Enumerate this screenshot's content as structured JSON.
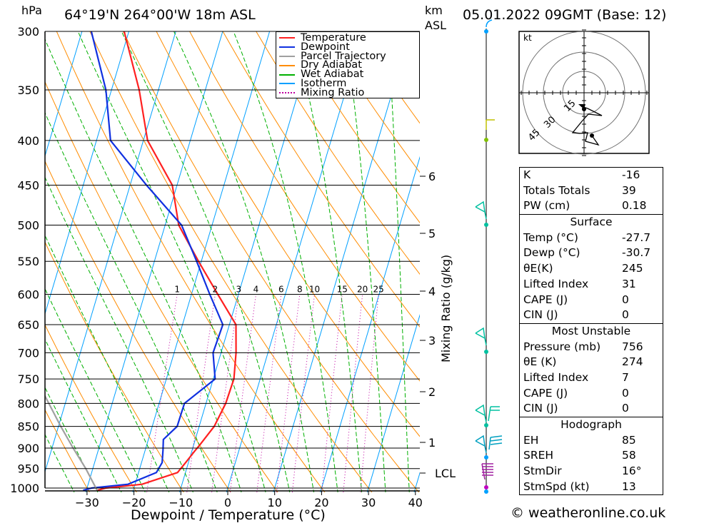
{
  "header": {
    "location": "64°19'N  264°00'W  18m  ASL",
    "datetime": "05.01.2022  09GMT  (Base: 12)",
    "pressure_unit": "hPa",
    "height_unit_top": "km",
    "height_unit_bottom": "ASL"
  },
  "axis": {
    "x_title": "Dewpoint / Temperature (°C)",
    "mixing_title": "Mixing Ratio (g/kg)",
    "lcl_label": "LCL"
  },
  "legend": [
    {
      "label": "Temperature",
      "color": "#ff2020",
      "style": "solid"
    },
    {
      "label": "Dewpoint",
      "color": "#1030e0",
      "style": "solid"
    },
    {
      "label": "Parcel Trajectory",
      "color": "#a0a0a0",
      "style": "solid"
    },
    {
      "label": "Dry Adiabat",
      "color": "#ff8c00",
      "style": "solid"
    },
    {
      "label": "Wet Adiabat",
      "color": "#00b000",
      "style": "solid"
    },
    {
      "label": "Isotherm",
      "color": "#00a0ff",
      "style": "solid"
    },
    {
      "label": "Mixing Ratio",
      "color": "#c000a0",
      "style": "dotted"
    }
  ],
  "chart_data": {
    "type": "line",
    "subtype": "skew-T log-p",
    "xlabel": "Dewpoint / Temperature (°C)",
    "ylabel": "hPa",
    "x_ticks": [
      -30,
      -20,
      -10,
      0,
      10,
      20,
      30,
      40
    ],
    "pressure_levels": [
      300,
      350,
      400,
      450,
      500,
      550,
      600,
      650,
      700,
      750,
      800,
      850,
      900,
      950,
      1000
    ],
    "height_ticks_km": [
      1,
      2,
      3,
      4,
      5,
      6
    ],
    "mixing_ratio_labels": [
      1,
      2,
      3,
      4,
      6,
      8,
      10,
      15,
      20,
      25
    ],
    "series": [
      {
        "name": "Temperature",
        "color": "#ff2020",
        "points": [
          [
            1006,
            -27.7
          ],
          [
            1000,
            -26
          ],
          [
            990,
            -18.5
          ],
          [
            960,
            -11.7
          ],
          [
            935,
            -10.6
          ],
          [
            905,
            -9.3
          ],
          [
            895,
            -8.8
          ],
          [
            850,
            -6.8
          ],
          [
            800,
            -5.8
          ],
          [
            750,
            -5.6
          ],
          [
            700,
            -6.8
          ],
          [
            650,
            -8.6
          ],
          [
            600,
            -14.4
          ],
          [
            550,
            -20.6
          ],
          [
            500,
            -27.1
          ],
          [
            450,
            -31.0
          ],
          [
            400,
            -39.1
          ],
          [
            350,
            -44.1
          ],
          [
            300,
            -51.0
          ]
        ]
      },
      {
        "name": "Dewpoint",
        "color": "#1030e0",
        "points": [
          [
            1006,
            -30.7
          ],
          [
            1000,
            -29
          ],
          [
            990,
            -21.5
          ],
          [
            960,
            -16.2
          ],
          [
            935,
            -15.6
          ],
          [
            905,
            -16.2
          ],
          [
            880,
            -16.8
          ],
          [
            850,
            -14.7
          ],
          [
            800,
            -14.6
          ],
          [
            750,
            -9.6
          ],
          [
            700,
            -11.7
          ],
          [
            650,
            -11.4
          ],
          [
            600,
            -16.1
          ],
          [
            550,
            -21.0
          ],
          [
            500,
            -26.5
          ],
          [
            450,
            -36.5
          ],
          [
            400,
            -47.0
          ],
          [
            350,
            -51.2
          ],
          [
            300,
            -58.0
          ]
        ]
      },
      {
        "name": "Parcel Trajectory",
        "color": "#a0a0a0",
        "points": [
          [
            1006,
            -27.7
          ],
          [
            950,
            -31.5
          ],
          [
            900,
            -35.5
          ],
          [
            850,
            -39.5
          ],
          [
            800,
            -43.5
          ],
          [
            750,
            -47.8
          ]
        ]
      }
    ],
    "lcl_km": 0.35,
    "wind_barb_heights_km": [
      0.05,
      0.1,
      0.15,
      0.2,
      0.25,
      0.3,
      0.6,
      1.0,
      1.5,
      2.8,
      5.5,
      7.5
    ]
  },
  "hodograph": {
    "unit_label": "kt",
    "ring_labels": [
      "15",
      "30",
      "45"
    ]
  },
  "indices": {
    "basic": [
      {
        "k": "K",
        "v": "-16"
      },
      {
        "k": "Totals Totals",
        "v": "39"
      },
      {
        "k": "PW (cm)",
        "v": "0.18"
      }
    ],
    "surface": {
      "title": "Surface",
      "rows": [
        {
          "k": "Temp (°C)",
          "v": "-27.7"
        },
        {
          "k": "Dewp (°C)",
          "v": "-30.7"
        },
        {
          "k": "θE(K)",
          "v": "245"
        },
        {
          "k": "Lifted Index",
          "v": "31"
        },
        {
          "k": "CAPE (J)",
          "v": "0"
        },
        {
          "k": "CIN (J)",
          "v": "0"
        }
      ]
    },
    "most_unstable": {
      "title": "Most Unstable",
      "rows": [
        {
          "k": "Pressure (mb)",
          "v": "756"
        },
        {
          "k": "θE (K)",
          "v": "274"
        },
        {
          "k": "Lifted Index",
          "v": "7"
        },
        {
          "k": "CAPE (J)",
          "v": "0"
        },
        {
          "k": "CIN (J)",
          "v": "0"
        }
      ]
    },
    "hodo": {
      "title": "Hodograph",
      "rows": [
        {
          "k": "EH",
          "v": "85"
        },
        {
          "k": "SREH",
          "v": "58"
        },
        {
          "k": "StmDir",
          "v": "16°"
        },
        {
          "k": "StmSpd (kt)",
          "v": "13"
        }
      ]
    }
  },
  "footer": "© weatheronline.co.uk"
}
